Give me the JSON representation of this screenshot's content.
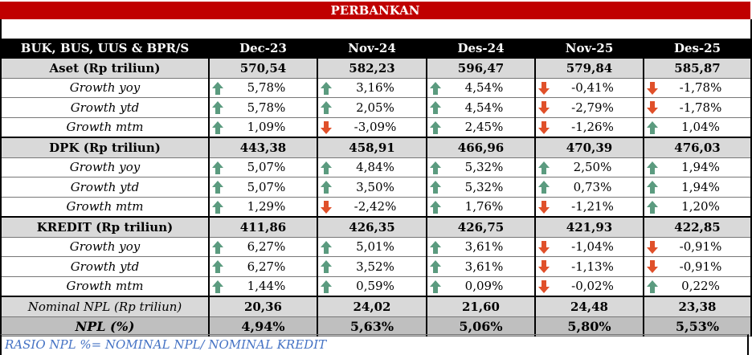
{
  "title": "PERBANKAN",
  "columns": [
    "BUK, BUS, UUS & BPR/S",
    "Dec-23",
    "Nov-24",
    "Des-24",
    "Nov-25",
    "Des-25"
  ],
  "colors": {
    "up": "#5b9b7f",
    "down": "#e0502a",
    "title_bg": "#c00000",
    "footnote": "#4472c4"
  },
  "rows": [
    {
      "type": "main",
      "label": "Aset (Rp triliun)",
      "values": [
        "570,54",
        "582,23",
        "596,47",
        "579,84",
        "585,87"
      ]
    },
    {
      "type": "sub",
      "label": "Growth yoy",
      "values": [
        "5,78%",
        "3,16%",
        "4,54%",
        "-0,41%",
        "-1,78%"
      ],
      "dirs": [
        "up",
        "up",
        "up",
        "down",
        "down"
      ]
    },
    {
      "type": "sub",
      "label": "Growth ytd",
      "values": [
        "5,78%",
        "2,05%",
        "4,54%",
        "-2,79%",
        "-1,78%"
      ],
      "dirs": [
        "up",
        "up",
        "up",
        "down",
        "down"
      ]
    },
    {
      "type": "sub",
      "label": "Growth mtm",
      "values": [
        "1,09%",
        "-3,09%",
        "2,45%",
        "-1,26%",
        "1,04%"
      ],
      "dirs": [
        "up",
        "down",
        "up",
        "down",
        "up"
      ]
    },
    {
      "type": "main",
      "label": "DPK (Rp triliun)",
      "values": [
        "443,38",
        "458,91",
        "466,96",
        "470,39",
        "476,03"
      ]
    },
    {
      "type": "sub",
      "label": "Growth yoy",
      "values": [
        "5,07%",
        "4,84%",
        "5,32%",
        "2,50%",
        "1,94%"
      ],
      "dirs": [
        "up",
        "up",
        "up",
        "up",
        "up"
      ]
    },
    {
      "type": "sub",
      "label": "Growth ytd",
      "values": [
        "5,07%",
        "3,50%",
        "5,32%",
        "0,73%",
        "1,94%"
      ],
      "dirs": [
        "up",
        "up",
        "up",
        "up",
        "up"
      ]
    },
    {
      "type": "sub",
      "label": "Growth mtm",
      "values": [
        "1,29%",
        "-2,42%",
        "1,76%",
        "-1,21%",
        "1,20%"
      ],
      "dirs": [
        "up",
        "down",
        "up",
        "down",
        "up"
      ]
    },
    {
      "type": "main",
      "label": "KREDIT  (Rp triliun)",
      "values": [
        "411,86",
        "426,35",
        "426,75",
        "421,93",
        "422,85"
      ]
    },
    {
      "type": "sub",
      "label": "Growth yoy",
      "values": [
        "6,27%",
        "5,01%",
        "3,61%",
        "-1,04%",
        "-0,91%"
      ],
      "dirs": [
        "up",
        "up",
        "up",
        "down",
        "down"
      ]
    },
    {
      "type": "sub",
      "label": "Growth ytd",
      "values": [
        "6,27%",
        "3,52%",
        "3,61%",
        "-1,13%",
        "-0,91%"
      ],
      "dirs": [
        "up",
        "up",
        "up",
        "down",
        "down"
      ]
    },
    {
      "type": "sub",
      "label": "Growth mtm",
      "values": [
        "1,44%",
        "0,59%",
        "0,09%",
        "-0,02%",
        "0,22%"
      ],
      "dirs": [
        "up",
        "up",
        "up",
        "down",
        "up"
      ]
    },
    {
      "type": "nom",
      "label": "Nominal NPL (Rp triliun)",
      "values": [
        "20,36",
        "24,02",
        "21,60",
        "24,48",
        "23,38"
      ]
    },
    {
      "type": "npl",
      "label": "NPL (%)",
      "values": [
        "4,94%",
        "5,63%",
        "5,06%",
        "5,80%",
        "5,53%"
      ]
    }
  ],
  "footnote": "RASIO NPL %= NOMINAL NPL/  NOMINAL KREDIT"
}
